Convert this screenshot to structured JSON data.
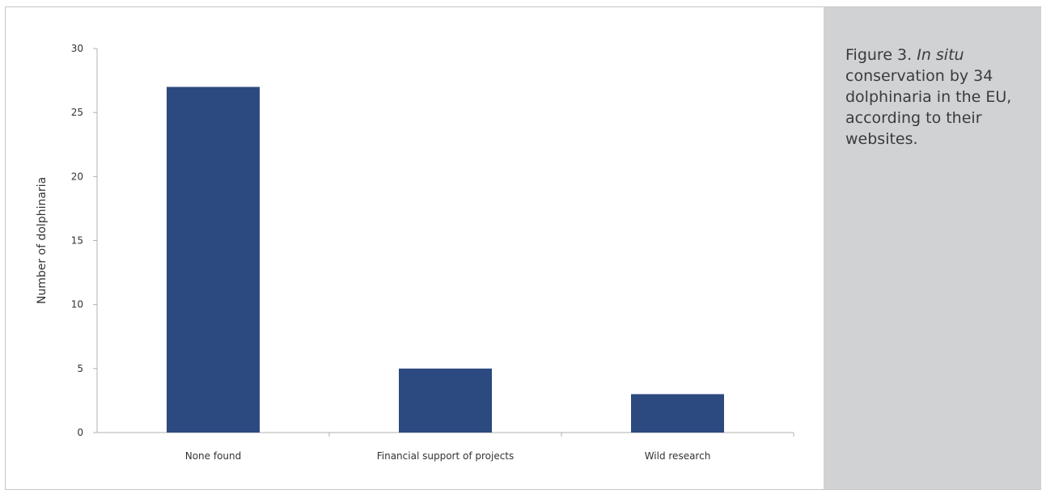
{
  "chart_data": {
    "type": "bar",
    "categories": [
      "None found",
      "Financial support of projects",
      "Wild research"
    ],
    "values": [
      27,
      5,
      3
    ],
    "ylabel": "Number of dolphinaria",
    "xlabel": "",
    "ylim": [
      0,
      30
    ],
    "yticks": [
      0,
      5,
      10,
      15,
      20,
      25,
      30
    ],
    "grid": false,
    "bar_color": "#2c4a7f"
  },
  "caption": {
    "prefix": "Figure 3. ",
    "italic": "In situ",
    "rest": " conservation by 34 dolphinaria in the EU, according to their websites."
  },
  "colors": {
    "panel": "#d1d2d4",
    "frame": "#c7c7c9",
    "axis": "#b0b0b0"
  }
}
